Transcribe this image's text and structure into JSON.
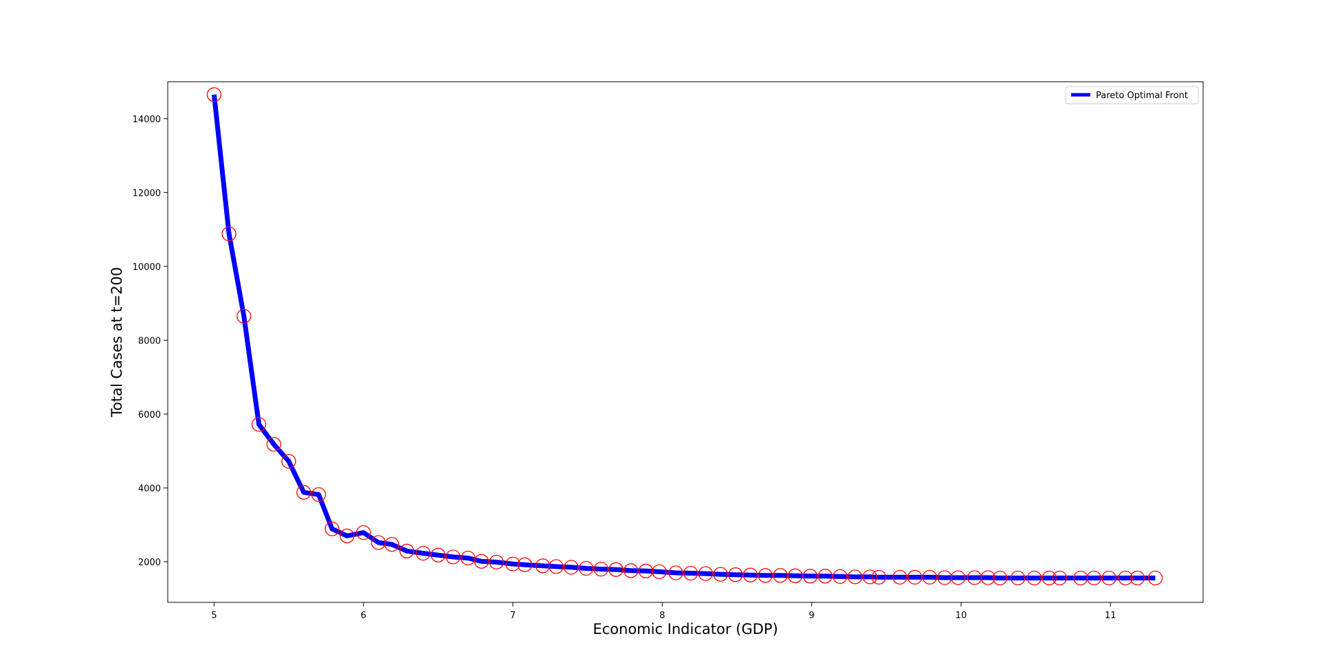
{
  "chart_data": {
    "type": "line",
    "title": "",
    "xlabel": "Economic Indicator (GDP)",
    "ylabel": "Total Cases at t=200",
    "xlim": [
      4.69,
      11.62
    ],
    "ylim": [
      900,
      15000
    ],
    "xticks": [
      5,
      6,
      7,
      8,
      9,
      10,
      11
    ],
    "yticks": [
      2000,
      4000,
      6000,
      8000,
      10000,
      12000,
      14000
    ],
    "xtick_labels": [
      "5",
      "6",
      "7",
      "8",
      "9",
      "10",
      "11"
    ],
    "ytick_labels": [
      "2000",
      "4000",
      "6000",
      "8000",
      "10000",
      "12000",
      "14000"
    ],
    "grid": false,
    "legend_position": "upper right",
    "colors": {
      "line": "#0000ff",
      "markers": "#ff0000",
      "axes": "#000000",
      "background": "#ffffff"
    },
    "series": [
      {
        "name": "Pareto Optimal Front",
        "marker": "open-circle",
        "x": [
          5.0,
          5.1,
          5.2,
          5.3,
          5.4,
          5.5,
          5.6,
          5.7,
          5.79,
          5.89,
          6.0,
          6.1,
          6.19,
          6.29,
          6.4,
          6.5,
          6.6,
          6.7,
          6.79,
          6.89,
          7.0,
          7.08,
          7.2,
          7.29,
          7.39,
          7.49,
          7.59,
          7.69,
          7.79,
          7.89,
          7.98,
          8.09,
          8.19,
          8.29,
          8.39,
          8.49,
          8.59,
          8.69,
          8.79,
          8.89,
          8.99,
          9.09,
          9.19,
          9.29,
          9.39,
          9.45,
          9.59,
          9.69,
          9.79,
          9.89,
          9.98,
          10.09,
          10.18,
          10.26,
          10.38,
          10.49,
          10.59,
          10.66,
          10.8,
          10.89,
          10.99,
          11.1,
          11.18,
          11.3
        ],
        "y": [
          14650,
          10880,
          8650,
          5720,
          5180,
          4720,
          3880,
          3820,
          2890,
          2700,
          2790,
          2520,
          2470,
          2290,
          2230,
          2180,
          2130,
          2100,
          2010,
          1990,
          1940,
          1920,
          1890,
          1870,
          1850,
          1820,
          1800,
          1790,
          1760,
          1750,
          1730,
          1700,
          1690,
          1680,
          1660,
          1650,
          1640,
          1630,
          1630,
          1620,
          1610,
          1610,
          1600,
          1590,
          1590,
          1580,
          1580,
          1580,
          1580,
          1570,
          1570,
          1570,
          1570,
          1560,
          1560,
          1560,
          1560,
          1560,
          1560,
          1560,
          1560,
          1560,
          1560,
          1560
        ]
      }
    ]
  }
}
